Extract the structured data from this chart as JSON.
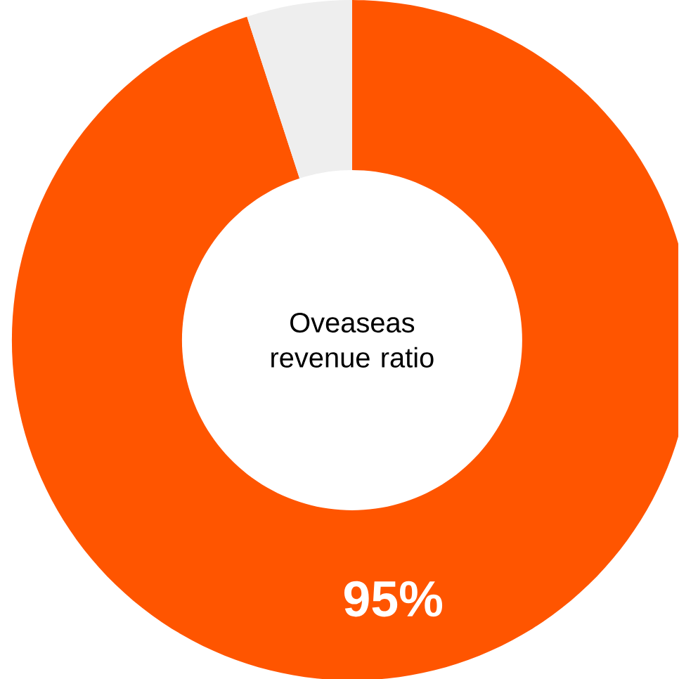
{
  "chart_data": {
    "type": "donut",
    "title": "Oveaseas revenue ratio",
    "categories": [
      null,
      null
    ],
    "values": [
      95,
      5
    ],
    "colors": [
      "#ff5500",
      "#eeeeee"
    ],
    "value_labels": [
      "95%",
      null
    ]
  }
}
